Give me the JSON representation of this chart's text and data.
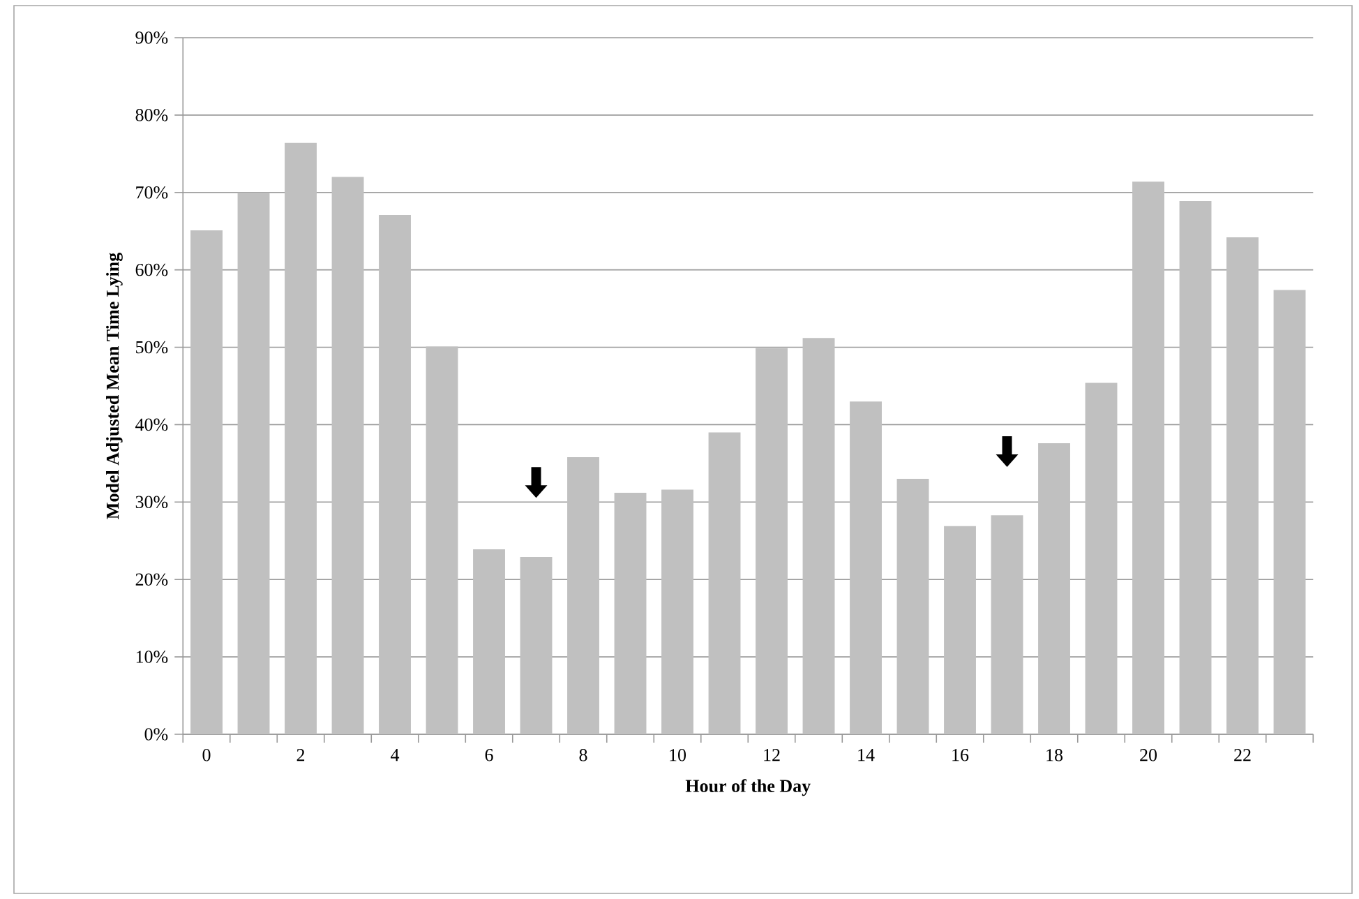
{
  "chart_data": {
    "type": "bar",
    "xlabel": "Hour of the Day",
    "ylabel": "Model Adjusted Mean Time Lying",
    "categories": [
      "0",
      null,
      "2",
      null,
      "4",
      null,
      "6",
      null,
      "8",
      null,
      "10",
      null,
      "12",
      null,
      "14",
      null,
      "16",
      null,
      "18",
      null,
      "20",
      null,
      "22",
      null
    ],
    "values": [
      65.1,
      70.0,
      76.4,
      72.0,
      67.1,
      50.1,
      23.9,
      22.9,
      35.8,
      31.2,
      31.6,
      39.0,
      49.9,
      51.2,
      43.0,
      33.0,
      26.9,
      28.3,
      37.6,
      45.4,
      71.4,
      68.9,
      64.2,
      57.4
    ],
    "color": "#c0c0c0",
    "ylim": [
      0,
      90
    ],
    "yticks": [
      {
        "value": 0,
        "label": "0%"
      },
      {
        "value": 10,
        "label": "10%"
      },
      {
        "value": 20,
        "label": "20%"
      },
      {
        "value": 30,
        "label": "30%"
      },
      {
        "value": 40,
        "label": "40%"
      },
      {
        "value": 50,
        "label": "50%"
      },
      {
        "value": 60,
        "label": "60%"
      },
      {
        "value": 70,
        "label": "70%"
      },
      {
        "value": 80,
        "label": "80%"
      },
      {
        "value": 90,
        "label": "90%"
      }
    ],
    "grid": "y"
  }
}
